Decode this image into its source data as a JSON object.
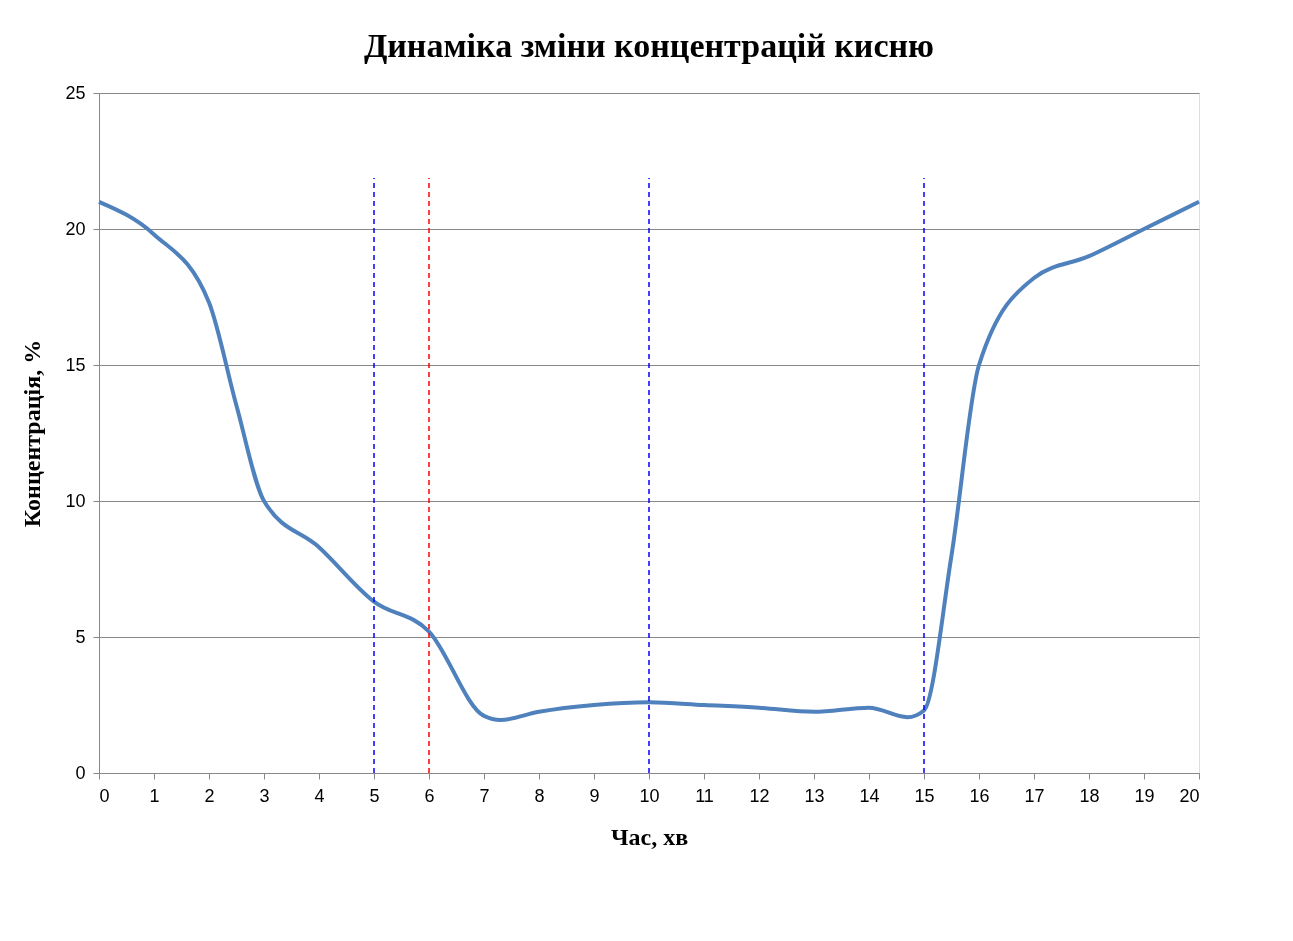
{
  "chart_data": {
    "type": "line",
    "title": "Динаміка зміни концентрацій кисню",
    "xlabel": "Час, хв",
    "ylabel": "Концентрація, %",
    "x": [
      0,
      1,
      2,
      2.5,
      3,
      4,
      5,
      6,
      7,
      7.3,
      8,
      9,
      10,
      11,
      12,
      13,
      14,
      14.7,
      15,
      15.5,
      16,
      17,
      18,
      19,
      20
    ],
    "series": [
      {
        "color": "#4f81bd",
        "values": [
          21,
          19.8,
          17.3,
          13.5,
          10,
          8.3,
          6.3,
          5.2,
          2.1,
          1.95,
          2.25,
          2.5,
          2.6,
          2.5,
          2.4,
          2.25,
          2.4,
          2.05,
          2.3,
          8,
          15,
          18.2,
          19,
          20,
          21
        ]
      }
    ],
    "xlim": [
      0,
      20
    ],
    "xticks": [
      0,
      1,
      2,
      3,
      4,
      5,
      6,
      7,
      8,
      9,
      10,
      11,
      12,
      13,
      14,
      15,
      16,
      17,
      18,
      19,
      20
    ],
    "ylim": [
      0,
      25
    ],
    "yticks": [
      0,
      5,
      10,
      15,
      20,
      25
    ],
    "ref_lines": [
      {
        "axis": "x",
        "value": 5,
        "color": "#0000ff",
        "line_style": "dashed"
      },
      {
        "axis": "x",
        "value": 6,
        "color": "#ff0000",
        "line_style": "dashed"
      },
      {
        "axis": "x",
        "value": 10,
        "color": "#0000ff",
        "line_style": "dashed"
      },
      {
        "axis": "x",
        "value": 15,
        "color": "#0000ff",
        "line_style": "dashed"
      }
    ],
    "grid": "y",
    "marker": "none",
    "line_style": "solid"
  }
}
